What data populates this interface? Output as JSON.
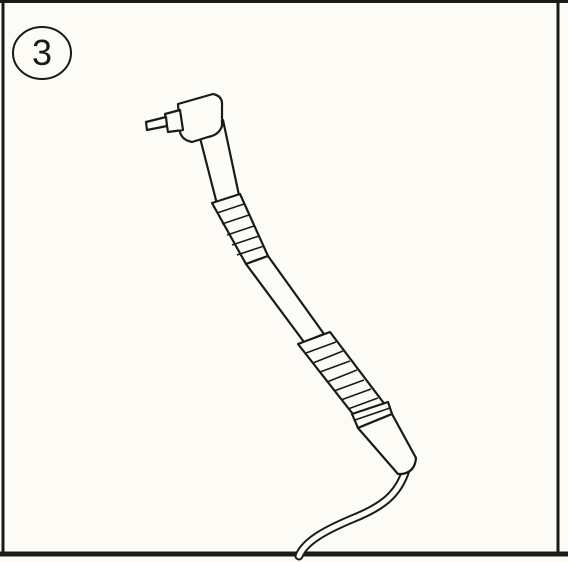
{
  "panel": {
    "step_number": "3"
  },
  "illustration": {
    "subject": "dental-handpiece-icon",
    "colors": {
      "ink": "#1a1a1a",
      "paper": "#fcfbf6"
    }
  }
}
